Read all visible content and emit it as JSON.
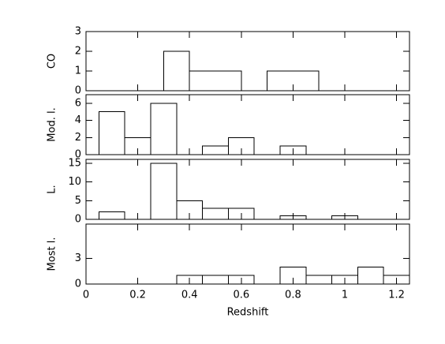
{
  "chart_data": [
    {
      "type": "histogram",
      "ylabel": "CO",
      "bins": [
        0.3,
        0.4,
        0.6,
        0.7,
        0.9
      ],
      "counts": [
        2,
        1,
        0,
        1
      ],
      "color": "#000000",
      "xlim": [
        0,
        1.25
      ],
      "ylim": [
        0,
        3
      ],
      "yticks": [
        0,
        1,
        2,
        3
      ]
    },
    {
      "type": "histogram",
      "ylabel": "Mod. l.",
      "bins": [
        0.05,
        0.15,
        0.25,
        0.35,
        0.45,
        0.55,
        0.65,
        0.75,
        0.85
      ],
      "counts": [
        5,
        2,
        6,
        0,
        1,
        2,
        0,
        1
      ],
      "color": "#000000",
      "xlim": [
        0,
        1.25
      ],
      "ylim": [
        0,
        7
      ],
      "yticks": [
        0,
        2,
        4,
        6
      ]
    },
    {
      "type": "histogram",
      "ylabel": "L.",
      "bins": [
        0.05,
        0.15,
        0.25,
        0.35,
        0.45,
        0.55,
        0.65,
        0.75,
        0.85,
        0.95,
        1.05
      ],
      "counts": [
        2,
        0,
        15,
        5,
        3,
        3,
        0,
        1,
        0,
        1
      ],
      "color": "#000000",
      "xlim": [
        0,
        1.25
      ],
      "ylim": [
        0,
        16
      ],
      "yticks": [
        0,
        5,
        10,
        15
      ]
    },
    {
      "type": "histogram",
      "ylabel": "Most l.",
      "xlabel": "Redshift",
      "bins": [
        0.35,
        0.45,
        0.55,
        0.65,
        0.75,
        0.85,
        0.95,
        1.05,
        1.15,
        1.25
      ],
      "counts": [
        1,
        1,
        1,
        0,
        2,
        1,
        1,
        2,
        1
      ],
      "color": "#000000",
      "xlim": [
        0,
        1.25
      ],
      "ylim": [
        0,
        7
      ],
      "yticks": [
        0,
        3
      ],
      "xticks": [
        0,
        0.2,
        0.4,
        0.6,
        0.8,
        1,
        1.2
      ]
    }
  ]
}
